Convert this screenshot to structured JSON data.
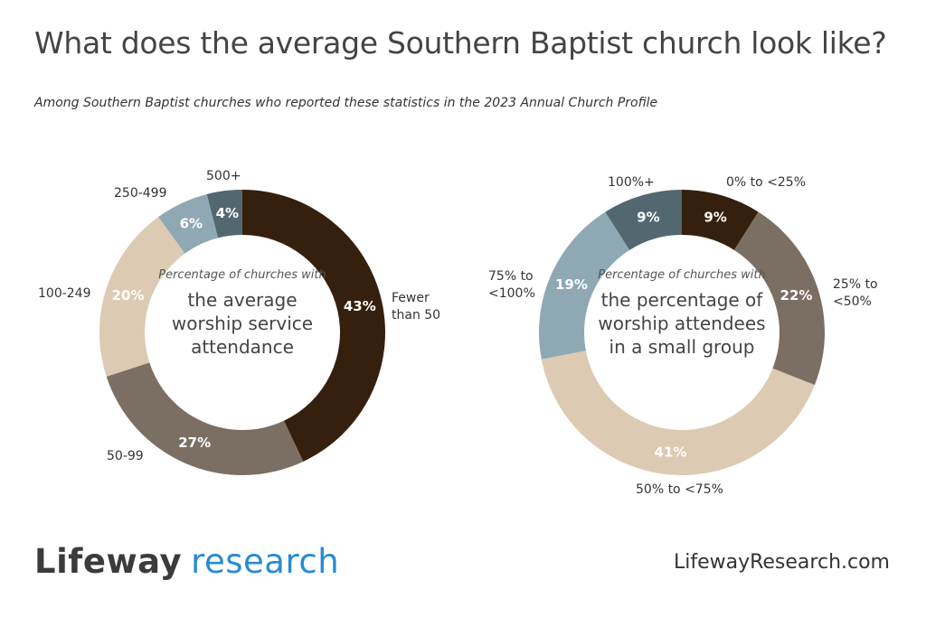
{
  "title": "What does the average Southern Baptist church look like?",
  "subtitle": "Among Southern Baptist churches who reported these statistics in the 2023 Annual Church Profile",
  "chart_data": [
    {
      "type": "pie",
      "donut": true,
      "center_intro": "Percentage of churches with",
      "center_title": "the average worship service attendance",
      "categories": [
        "Fewer than 50",
        "50-99",
        "100-249",
        "250-499",
        "500+"
      ],
      "values": [
        43,
        27,
        20,
        6,
        4
      ],
      "data_labels": [
        "43%",
        "27%",
        "20%",
        "6%",
        "4%"
      ],
      "colors": [
        "#35200d",
        "#7b6e62",
        "#dccab2",
        "#8fa9b4",
        "#536770"
      ]
    },
    {
      "type": "pie",
      "donut": true,
      "center_intro": "Percentage of churches with",
      "center_title": "the percentage of worship attendees in a small group",
      "categories": [
        "0% to <25%",
        "25% to <50%",
        "50% to <75%",
        "75% to <100%",
        "100%+"
      ],
      "values": [
        9,
        22,
        41,
        19,
        9
      ],
      "data_labels": [
        "9%",
        "22%",
        "41%",
        "19%",
        "9%"
      ],
      "colors": [
        "#35200d",
        "#7b6e62",
        "#dccab2",
        "#8fa9b4",
        "#536770"
      ]
    }
  ],
  "footer": {
    "logo_word1": "Lifeway",
    "logo_word2": "research",
    "logo_color": "#2a8ad0",
    "url": "LifewayResearch.com"
  }
}
